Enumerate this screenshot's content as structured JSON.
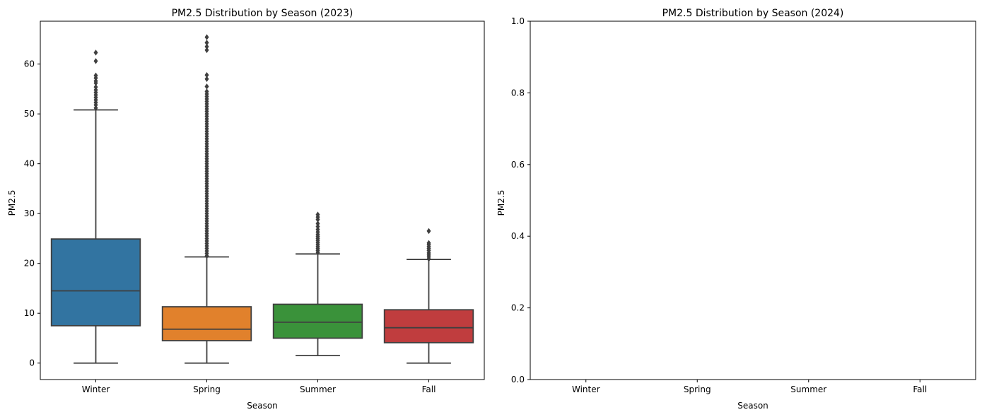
{
  "chart_data": [
    {
      "type": "box",
      "title": "PM2.5 Distribution by Season (2023)",
      "xlabel": "Season",
      "ylabel": "PM2.5",
      "categories": [
        "Winter",
        "Spring",
        "Summer",
        "Fall"
      ],
      "ylim": [
        -3.3,
        68.6
      ],
      "yticks": [
        0,
        10,
        20,
        30,
        40,
        50,
        60
      ],
      "colors": [
        "#3274a1",
        "#e1812c",
        "#3a923a",
        "#c03d3e"
      ],
      "boxes": [
        {
          "category": "Winter",
          "whisker_low": 0.0,
          "q1": 7.5,
          "median": 14.5,
          "q3": 24.9,
          "whisker_high": 50.8,
          "outliers": [
            51.2,
            51.8,
            52.3,
            52.8,
            53.3,
            53.8,
            54.3,
            54.8,
            55.4,
            56.2,
            56.6,
            57.2,
            57.7,
            60.6,
            62.3
          ]
        },
        {
          "category": "Spring",
          "whisker_low": 0.0,
          "q1": 4.5,
          "median": 6.8,
          "q3": 11.3,
          "whisker_high": 21.3,
          "outliers": [
            21.5,
            22.0,
            22.5,
            23.0,
            23.5,
            24.0,
            24.5,
            25.0,
            25.5,
            26.0,
            26.5,
            27.0,
            27.5,
            28.0,
            28.5,
            29.0,
            29.5,
            30.0,
            30.5,
            31.0,
            31.5,
            32.0,
            32.5,
            33.0,
            33.5,
            34.0,
            34.5,
            35.0,
            35.5,
            36.0,
            36.5,
            37.0,
            37.5,
            38.0,
            38.5,
            39.0,
            39.5,
            40.0,
            40.5,
            41.0,
            41.5,
            42.0,
            42.5,
            43.0,
            43.5,
            44.0,
            44.5,
            45.0,
            45.5,
            46.0,
            46.5,
            47.0,
            47.5,
            48.0,
            48.5,
            49.0,
            49.5,
            50.0,
            50.5,
            51.0,
            51.5,
            52.0,
            52.5,
            53.0,
            53.5,
            54.0,
            54.5,
            55.5,
            57.0,
            57.8,
            62.8,
            63.5,
            64.3,
            65.4
          ]
        },
        {
          "category": "Summer",
          "whisker_low": 1.5,
          "q1": 5.0,
          "median": 8.2,
          "q3": 11.8,
          "whisker_high": 21.9,
          "outliers": [
            22.2,
            22.6,
            23.0,
            23.4,
            23.8,
            24.2,
            24.6,
            25.0,
            25.4,
            25.8,
            26.3,
            26.8,
            27.4,
            28.0,
            28.8,
            29.3,
            29.8
          ]
        },
        {
          "category": "Fall",
          "whisker_low": 0.0,
          "q1": 4.1,
          "median": 7.1,
          "q3": 10.7,
          "whisker_high": 20.8,
          "outliers": [
            20.9,
            21.3,
            21.7,
            22.1,
            22.6,
            23.0,
            23.4,
            23.8,
            24.1,
            26.5
          ]
        }
      ]
    },
    {
      "type": "box",
      "title": "PM2.5 Distribution by Season (2024)",
      "xlabel": "Season",
      "ylabel": "PM2.5",
      "categories": [
        "Winter",
        "Spring",
        "Summer",
        "Fall"
      ],
      "ylim": [
        0.0,
        1.0
      ],
      "yticks": [
        "0.0",
        "0.2",
        "0.4",
        "0.6",
        "0.8",
        "1.0"
      ],
      "boxes": []
    }
  ]
}
